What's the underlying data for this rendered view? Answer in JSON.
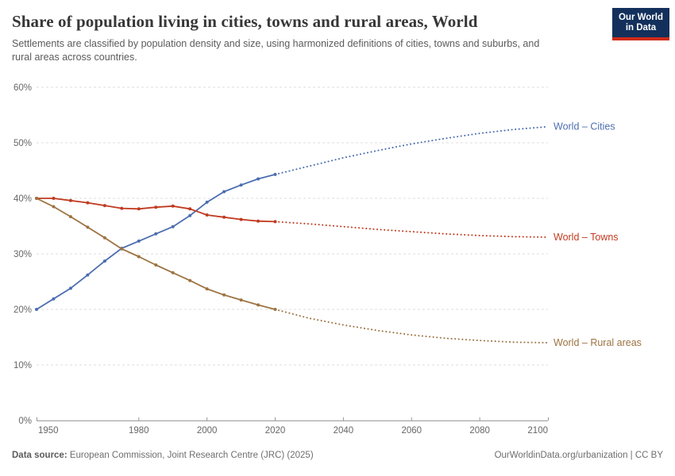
{
  "header": {
    "title": "Share of population living in cities, towns and rural areas, World",
    "subtitle": "Settlements are classified by population density and size, using harmonized definitions of cities, towns and suburbs, and rural areas across countries.",
    "logo": {
      "line1": "Our World",
      "line2": "in Data",
      "bg": "#12305B",
      "accent": "#CE2A19"
    }
  },
  "footer": {
    "source_label": "Data source:",
    "source_text": " European Commission, Joint Research Centre (JRC) (2025)",
    "credit": "OurWorldinData.org/urbanization | CC BY"
  },
  "chart_data": {
    "type": "line",
    "title": "Share of population living in cities, towns and rural areas, World",
    "xlabel": "",
    "ylabel": "",
    "ylim": [
      0,
      60
    ],
    "xlim": [
      1950,
      2100
    ],
    "grid": "horizontal-dashed",
    "legend_position": "right-end-labels",
    "yticks": [
      {
        "v": 0,
        "label": "0%"
      },
      {
        "v": 10,
        "label": "10%"
      },
      {
        "v": 20,
        "label": "20%"
      },
      {
        "v": 30,
        "label": "30%"
      },
      {
        "v": 40,
        "label": "40%"
      },
      {
        "v": 50,
        "label": "50%"
      },
      {
        "v": 60,
        "label": "60%"
      }
    ],
    "xticks": [
      {
        "v": 1950,
        "label": "1950"
      },
      {
        "v": 1980,
        "label": "1980"
      },
      {
        "v": 2000,
        "label": "2000"
      },
      {
        "v": 2020,
        "label": "2020"
      },
      {
        "v": 2040,
        "label": "2040"
      },
      {
        "v": 2060,
        "label": "2060"
      },
      {
        "v": 2080,
        "label": "2080"
      },
      {
        "v": 2100,
        "label": "2100"
      }
    ],
    "x_observed": [
      1950,
      1955,
      1960,
      1965,
      1970,
      1975,
      1980,
      1985,
      1990,
      1995,
      2000,
      2005,
      2010,
      2015,
      2020
    ],
    "x_projected": [
      2020,
      2030,
      2040,
      2050,
      2060,
      2070,
      2080,
      2090,
      2100
    ],
    "series": [
      {
        "name": "World – Cities",
        "color": "#4C6EB0",
        "observed": [
          20.0,
          21.9,
          23.8,
          26.2,
          28.7,
          31.0,
          32.3,
          33.6,
          34.9,
          36.9,
          39.3,
          41.2,
          42.4,
          43.5,
          44.3
        ],
        "projected": [
          44.3,
          45.8,
          47.3,
          48.6,
          49.8,
          50.8,
          51.7,
          52.4,
          52.9
        ]
      },
      {
        "name": "World – Towns",
        "color": "#C13B21",
        "observed": [
          40.0,
          40.0,
          39.6,
          39.2,
          38.7,
          38.2,
          38.1,
          38.4,
          38.6,
          38.1,
          37.0,
          36.6,
          36.2,
          35.9,
          35.8
        ],
        "projected": [
          35.8,
          35.4,
          34.9,
          34.4,
          34.0,
          33.6,
          33.3,
          33.1,
          33.0
        ]
      },
      {
        "name": "World – Rural areas",
        "color": "#9D7342",
        "observed": [
          40.0,
          38.5,
          36.7,
          34.8,
          32.9,
          30.9,
          29.5,
          28.0,
          26.6,
          25.2,
          23.7,
          22.6,
          21.7,
          20.8,
          20.0
        ],
        "projected": [
          20.0,
          18.4,
          17.2,
          16.2,
          15.4,
          14.8,
          14.4,
          14.1,
          14.0
        ]
      }
    ],
    "style": {
      "grid_color": "#dcdcdc",
      "axis_color": "#999999",
      "tick_text_color": "#666666"
    }
  }
}
